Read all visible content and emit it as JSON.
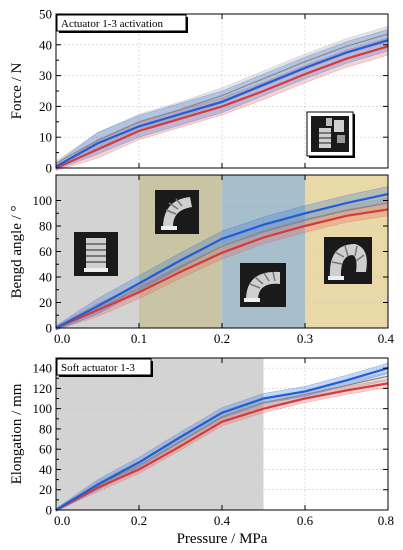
{
  "chart_data": [
    {
      "type": "line",
      "annotation": "Actuator 1-3 activation",
      "xlabel": "",
      "ylabel": "Force / N",
      "xlim": [
        0,
        0.4
      ],
      "ylim": [
        0,
        50
      ],
      "xticks": [],
      "yticks": [
        "0",
        "10",
        "20",
        "30",
        "40",
        "50"
      ],
      "grid": true,
      "inset_image": "actuator-photo",
      "series": [
        {
          "color": "#1f5fd6",
          "band_color": "#2d6fd8",
          "x": [
            0,
            0.05,
            0.1,
            0.15,
            0.2,
            0.25,
            0.3,
            0.35,
            0.4
          ],
          "y": [
            0.5,
            8,
            13.5,
            17.5,
            21.5,
            27,
            32.5,
            37.5,
            41.5
          ],
          "spread": 3.5
        },
        {
          "color": "#d63a3a",
          "band_color": "#e06060",
          "x": [
            0,
            0.05,
            0.1,
            0.15,
            0.2,
            0.25,
            0.3,
            0.35,
            0.4
          ],
          "y": [
            0,
            6,
            12,
            16,
            20,
            25,
            30.5,
            35.5,
            39.5
          ],
          "spread": 2.8
        },
        {
          "color": "#8a8a8a",
          "band_color": "#a0a0a0",
          "x": [
            0,
            0.05,
            0.1,
            0.15,
            0.2,
            0.25,
            0.3,
            0.35,
            0.4
          ],
          "y": [
            1.5,
            9,
            15,
            19,
            23.5,
            29,
            34.5,
            39.5,
            43.5
          ],
          "spread": 2.5
        }
      ]
    },
    {
      "type": "line",
      "annotation": "",
      "xlabel": "",
      "ylabel": "Bengd angle / °",
      "xlim": [
        0,
        0.4
      ],
      "ylim": [
        0,
        120
      ],
      "xticks": [
        "0.0",
        "0.1",
        "0.2",
        "0.3",
        "0.4"
      ],
      "yticks": [
        "0",
        "20",
        "40",
        "60",
        "80",
        "100"
      ],
      "grid": true,
      "regions": [
        {
          "x0": 0.0,
          "x1": 0.1,
          "color": "#d3d3d3"
        },
        {
          "x0": 0.1,
          "x1": 0.2,
          "color": "#c9c4a3"
        },
        {
          "x0": 0.2,
          "x1": 0.3,
          "color": "#a7bfcc"
        },
        {
          "x0": 0.3,
          "x1": 0.4,
          "color": "#ead9a8"
        }
      ],
      "inset_images": [
        "straight-actuator-photo",
        "slightly-bent-actuator-photo",
        "bent-actuator-photo",
        "fully-bent-actuator-photo"
      ],
      "series": [
        {
          "color": "#1f5fd6",
          "band_color": "#2d6fd8",
          "x": [
            0,
            0.05,
            0.1,
            0.15,
            0.2,
            0.25,
            0.3,
            0.35,
            0.4
          ],
          "y": [
            0,
            17,
            35,
            53,
            70,
            81,
            90,
            98,
            105
          ],
          "spread": 6
        },
        {
          "color": "#d63a3a",
          "band_color": "#e06060",
          "x": [
            0,
            0.05,
            0.1,
            0.15,
            0.2,
            0.25,
            0.3,
            0.35,
            0.4
          ],
          "y": [
            0,
            14,
            28,
            44,
            59,
            71,
            80,
            88,
            93
          ],
          "spread": 5
        },
        {
          "color": "#8a8a8a",
          "band_color": "#a0a0a0",
          "x": [
            0,
            0.05,
            0.1,
            0.15,
            0.2,
            0.25,
            0.3,
            0.35,
            0.4
          ],
          "y": [
            0,
            15,
            31,
            48,
            64,
            76,
            85,
            92,
            98
          ],
          "spread": 4
        }
      ]
    },
    {
      "type": "line",
      "annotation": "Soft actuator 1-3",
      "xlabel": "Pressure / MPa",
      "ylabel": "Elongation / mm",
      "xlim": [
        0,
        0.8
      ],
      "ylim": [
        0,
        150
      ],
      "xticks": [
        "0.0",
        "0.2",
        "0.4",
        "0.6",
        "0.8"
      ],
      "yticks": [
        "0",
        "20",
        "40",
        "60",
        "80",
        "100",
        "120",
        "140"
      ],
      "grid": true,
      "regions": [
        {
          "x0": 0.0,
          "x1": 0.5,
          "color": "#d3d3d3"
        }
      ],
      "series": [
        {
          "color": "#1f5fd6",
          "band_color": "#2d6fd8",
          "x": [
            0,
            0.1,
            0.2,
            0.3,
            0.4,
            0.5,
            0.6,
            0.7,
            0.8
          ],
          "y": [
            0,
            25,
            47,
            72,
            96,
            110,
            117,
            128,
            140
          ],
          "spread": 5
        },
        {
          "color": "#d63a3a",
          "band_color": "#e06060",
          "x": [
            0,
            0.1,
            0.2,
            0.3,
            0.4,
            0.5,
            0.6,
            0.7,
            0.8
          ],
          "y": [
            0,
            22,
            40,
            63,
            87,
            100,
            110,
            118,
            125
          ],
          "spread": 4
        },
        {
          "color": "#8a8a8a",
          "band_color": "#a0a0a0",
          "x": [
            0,
            0.1,
            0.2,
            0.3,
            0.4,
            0.5,
            0.6,
            0.7,
            0.8
          ],
          "y": [
            0,
            24,
            44,
            68,
            92,
            106,
            114,
            123,
            132
          ],
          "spread": 4
        }
      ]
    }
  ]
}
